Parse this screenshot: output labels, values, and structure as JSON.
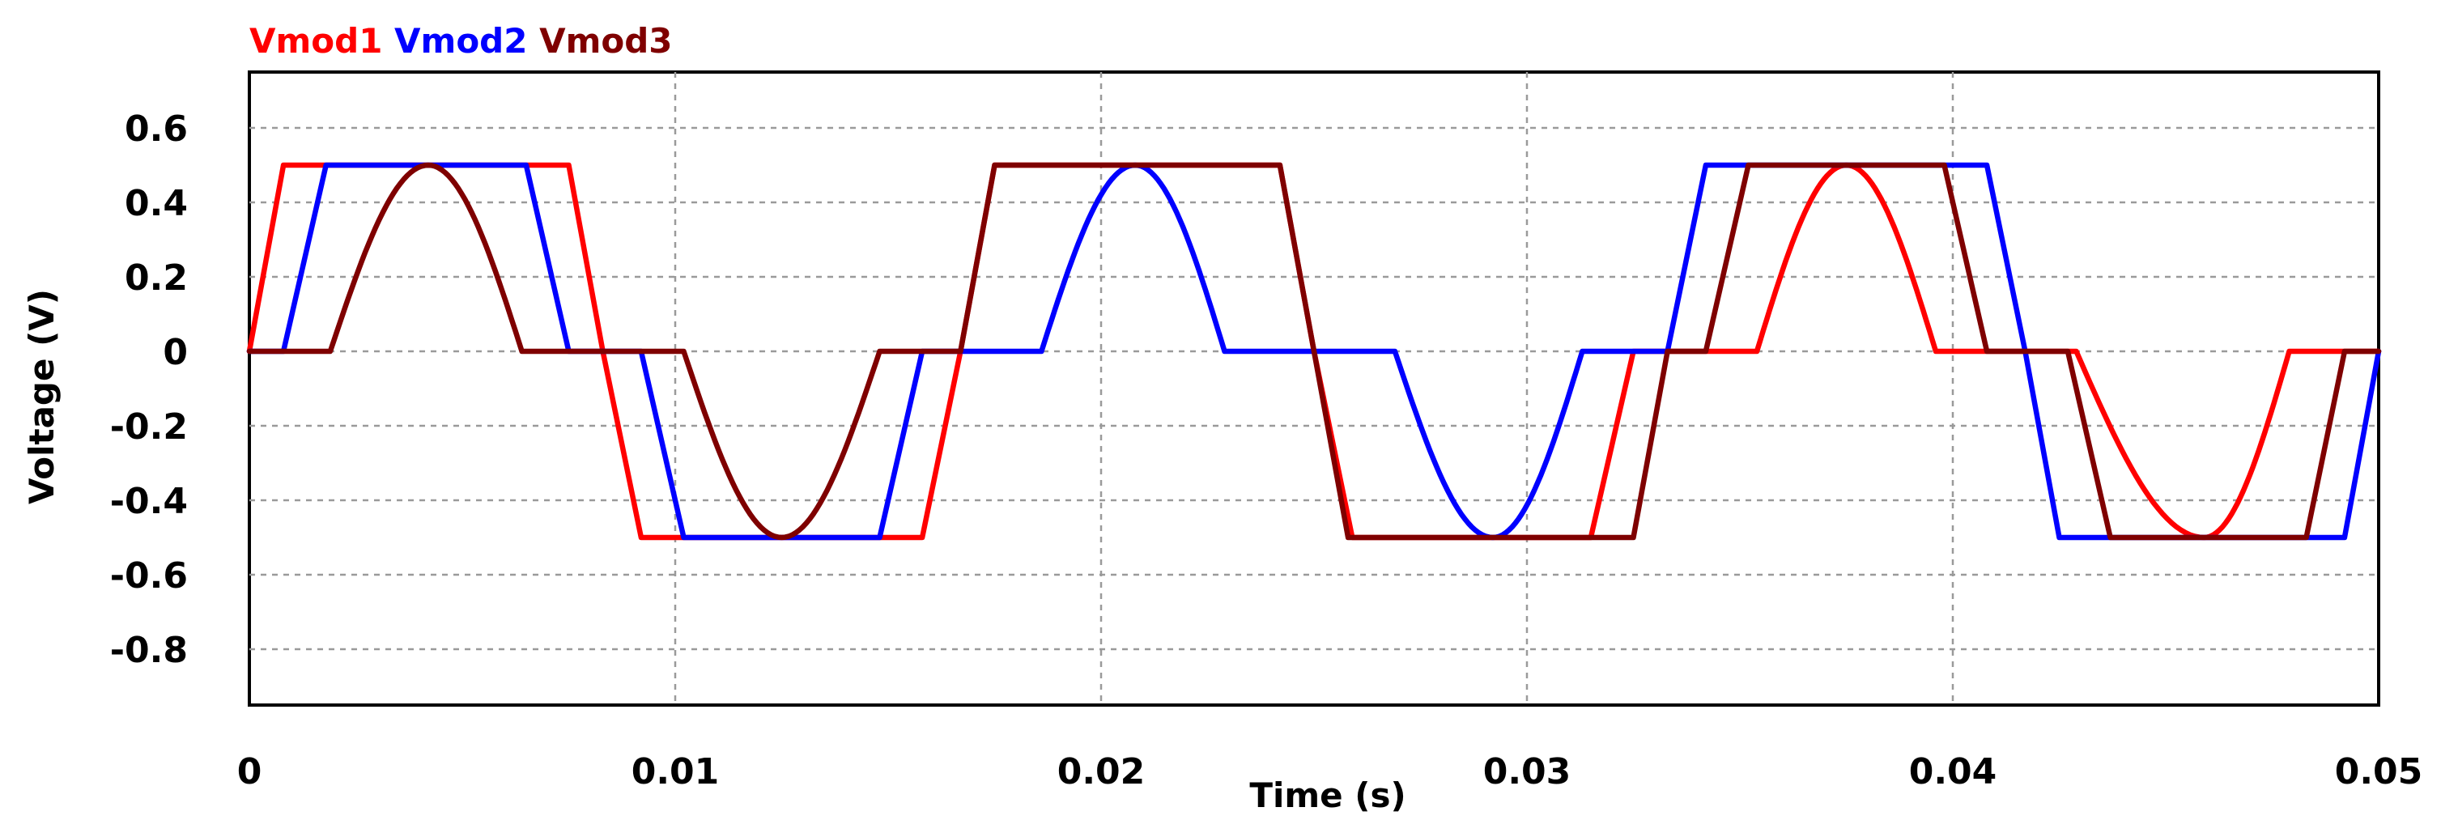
{
  "chart_data": {
    "type": "line",
    "title": "",
    "xlabel": "Time (s)",
    "ylabel": "Voltage (V)",
    "xlim": [
      0,
      0.05
    ],
    "ylim": [
      -0.95,
      0.75
    ],
    "grid": true,
    "legend_placement": "top-left",
    "x_ticks": [
      {
        "value": 0,
        "label": "0"
      },
      {
        "value": 0.01,
        "label": "0.01"
      },
      {
        "value": 0.02,
        "label": "0.02"
      },
      {
        "value": 0.03,
        "label": "0.03"
      },
      {
        "value": 0.04,
        "label": "0.04"
      },
      {
        "value": 0.05,
        "label": "0.05"
      }
    ],
    "y_ticks": [
      {
        "value": 0.6,
        "label": "0.6"
      },
      {
        "value": 0.4,
        "label": "0.4"
      },
      {
        "value": 0.2,
        "label": "0.2"
      },
      {
        "value": 0,
        "label": "0"
      },
      {
        "value": -0.2,
        "label": "-0.2"
      },
      {
        "value": -0.4,
        "label": "-0.4"
      },
      {
        "value": -0.6,
        "label": "-0.6"
      },
      {
        "value": -0.8,
        "label": "-0.8"
      }
    ],
    "series": [
      {
        "name": "Vmod1",
        "color": "#ff0000",
        "x": [
          0,
          0.0008,
          0.0037,
          0.0075,
          0.0083,
          0.0092,
          0.0121,
          0.0158,
          0.0167,
          0.0175,
          0.0204,
          0.0242,
          0.025,
          0.0259,
          0.0288,
          0.0315,
          0.0325,
          0.0333,
          0.0354,
          0.0375,
          0.0396,
          0.0408,
          0.0429,
          0.0459,
          0.0479,
          0.05
        ],
        "y": [
          0,
          0.5,
          0.5,
          0.5,
          0,
          -0.5,
          -0.5,
          -0.5,
          0,
          0.5,
          0.5,
          0.5,
          0,
          -0.5,
          -0.5,
          -0.5,
          0,
          0,
          0,
          0.5,
          0,
          0,
          0,
          -0.5,
          0,
          0
        ]
      },
      {
        "name": "Vmod2",
        "color": "#0000ff",
        "x": [
          0,
          0.0008,
          0.0018,
          0.0065,
          0.0075,
          0.0083,
          0.0092,
          0.0102,
          0.0148,
          0.0158,
          0.0167,
          0.0186,
          0.0208,
          0.0229,
          0.025,
          0.0269,
          0.0292,
          0.0313,
          0.0333,
          0.0342,
          0.0408,
          0.0417,
          0.0425,
          0.0492,
          0.05
        ],
        "y": [
          0,
          0,
          0.5,
          0.5,
          0,
          0,
          0,
          -0.5,
          -0.5,
          0,
          0,
          0,
          0.5,
          0,
          0,
          0,
          -0.5,
          0,
          0,
          0.5,
          0.5,
          0,
          -0.5,
          -0.5,
          0
        ]
      },
      {
        "name": "Vmod3",
        "color": "#7f0000",
        "x": [
          0,
          0.0019,
          0.0042,
          0.0064,
          0.0083,
          0.0102,
          0.0125,
          0.0148,
          0.0167,
          0.0175,
          0.0242,
          0.025,
          0.0258,
          0.0325,
          0.0333,
          0.0342,
          0.0352,
          0.0398,
          0.0408,
          0.0417,
          0.0427,
          0.0437,
          0.0483,
          0.0492,
          0.05
        ],
        "y": [
          0,
          0,
          0.5,
          0,
          0,
          0,
          -0.5,
          0,
          0,
          0.5,
          0.5,
          0,
          -0.5,
          -0.5,
          0,
          0,
          0.5,
          0.5,
          0,
          0,
          0,
          -0.5,
          -0.5,
          0,
          0
        ]
      }
    ]
  }
}
